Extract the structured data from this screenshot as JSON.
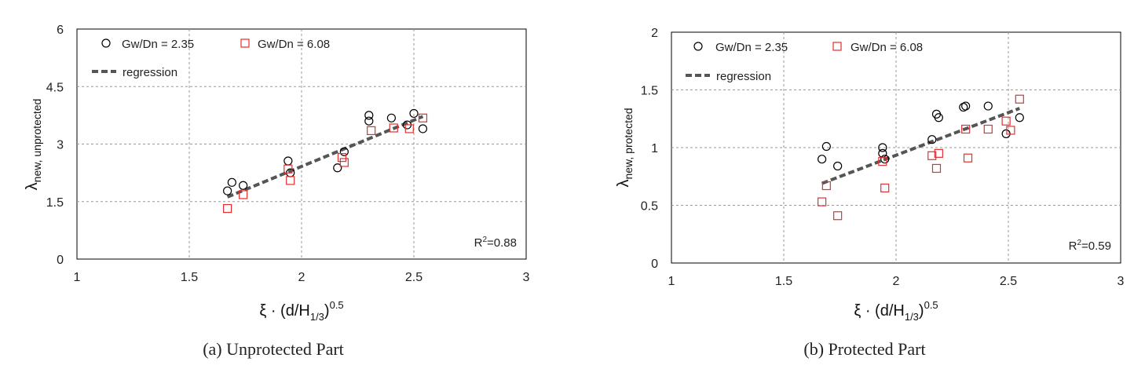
{
  "chart_data": [
    {
      "type": "scatter",
      "caption": "(a) Unprotected Part",
      "xlabel": {
        "base": "ξ · (d/H",
        "sub": "1/3",
        "tail": ")",
        "sup": "0.5"
      },
      "ylabel": {
        "base": "λ",
        "sub": "new, unprotected"
      },
      "xlim": [
        1,
        3
      ],
      "ylim": [
        0,
        6
      ],
      "xticks": [
        1,
        1.5,
        2,
        2.5,
        3
      ],
      "yticks": [
        0,
        1.5,
        3,
        4.5,
        6
      ],
      "xtick_labels": [
        "1",
        "1.5",
        "2",
        "2.5",
        "3"
      ],
      "ytick_labels": [
        "0",
        "1.5",
        "3",
        "4.5",
        "6"
      ],
      "grid": true,
      "legend_position": "top-left",
      "r2": {
        "base": "R",
        "sup": "2",
        "tail": "=0.88"
      },
      "series": [
        {
          "name": "Gw/Dn = 2.35",
          "marker": "circle",
          "color": "#000000",
          "points": [
            [
              1.67,
              1.78
            ],
            [
              1.69,
              2.0
            ],
            [
              1.74,
              1.92
            ],
            [
              1.94,
              2.56
            ],
            [
              1.95,
              2.25
            ],
            [
              2.16,
              2.38
            ],
            [
              2.19,
              2.8
            ],
            [
              2.3,
              3.6
            ],
            [
              2.3,
              3.75
            ],
            [
              2.4,
              3.68
            ],
            [
              2.47,
              3.5
            ],
            [
              2.5,
              3.8
            ],
            [
              2.54,
              3.4
            ]
          ]
        },
        {
          "name": "Gw/Dn = 6.08",
          "marker": "square",
          "color": "#e03030",
          "points": [
            [
              1.67,
              1.32
            ],
            [
              1.74,
              1.68
            ],
            [
              1.94,
              2.35
            ],
            [
              1.95,
              2.05
            ],
            [
              2.18,
              2.65
            ],
            [
              2.19,
              2.52
            ],
            [
              2.31,
              3.35
            ],
            [
              2.41,
              3.42
            ],
            [
              2.48,
              3.4
            ],
            [
              2.54,
              3.68
            ]
          ]
        },
        {
          "name": "regression",
          "marker": "dashed-line",
          "color": "#555555",
          "line": [
            [
              1.67,
              1.62
            ],
            [
              2.54,
              3.72
            ]
          ]
        }
      ]
    },
    {
      "type": "scatter",
      "caption": "(b) Protected Part",
      "xlabel": {
        "base": "ξ · (d/H",
        "sub": "1/3",
        "tail": ")",
        "sup": "0.5"
      },
      "ylabel": {
        "base": "λ",
        "sub": "new, protected"
      },
      "xlim": [
        1,
        3
      ],
      "ylim": [
        0,
        2
      ],
      "xticks": [
        1,
        1.5,
        2,
        2.5,
        3
      ],
      "yticks": [
        0,
        0.5,
        1,
        1.5,
        2
      ],
      "xtick_labels": [
        "1",
        "1.5",
        "2",
        "2.5",
        "3"
      ],
      "ytick_labels": [
        "0",
        "0.5",
        "1",
        "1.5",
        "2"
      ],
      "grid": true,
      "legend_position": "top-left",
      "r2": {
        "base": "R",
        "sup": "2",
        "tail": "=0.59"
      },
      "series": [
        {
          "name": "Gw/Dn = 2.35",
          "marker": "circle",
          "color": "#000000",
          "points": [
            [
              1.67,
              0.9
            ],
            [
              1.69,
              1.01
            ],
            [
              1.74,
              0.84
            ],
            [
              1.94,
              1.0
            ],
            [
              1.94,
              0.95
            ],
            [
              1.95,
              0.9
            ],
            [
              2.16,
              1.07
            ],
            [
              2.18,
              1.29
            ],
            [
              2.19,
              1.26
            ],
            [
              2.3,
              1.35
            ],
            [
              2.31,
              1.36
            ],
            [
              2.41,
              1.36
            ],
            [
              2.49,
              1.12
            ],
            [
              2.55,
              1.26
            ]
          ]
        },
        {
          "name": "Gw/Dn = 6.08",
          "marker": "square",
          "color": "#e03030",
          "points": [
            [
              1.67,
              0.53
            ],
            [
              1.69,
              0.67
            ],
            [
              1.74,
              0.41
            ],
            [
              1.94,
              0.88
            ],
            [
              1.95,
              0.65
            ],
            [
              2.16,
              0.93
            ],
            [
              2.18,
              0.82
            ],
            [
              2.19,
              0.95
            ],
            [
              2.31,
              1.16
            ],
            [
              2.32,
              0.91
            ],
            [
              2.41,
              1.16
            ],
            [
              2.49,
              1.23
            ],
            [
              2.51,
              1.15
            ],
            [
              2.55,
              1.42
            ]
          ]
        },
        {
          "name": "regression",
          "marker": "dashed-line",
          "color": "#555555",
          "line": [
            [
              1.67,
              0.69
            ],
            [
              2.55,
              1.34
            ]
          ]
        }
      ]
    }
  ]
}
